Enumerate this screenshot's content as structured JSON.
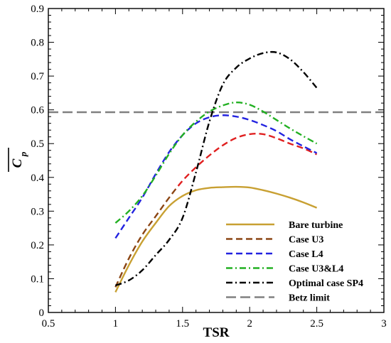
{
  "chart_data": {
    "type": "line",
    "xlabel": "TSR",
    "ylabel": "C",
    "ylabel_subscript": "p",
    "xlim": [
      0.5,
      3
    ],
    "ylim": [
      0,
      0.9
    ],
    "xticks": [
      0.5,
      1,
      1.5,
      2,
      2.5,
      3
    ],
    "xtick_labels": [
      "0.5",
      "1",
      "1.5",
      "2",
      "2.5",
      "3"
    ],
    "yticks": [
      0,
      0.1,
      0.2,
      0.3,
      0.4,
      0.5,
      0.6,
      0.7,
      0.8,
      0.9
    ],
    "ytick_labels": [
      "0",
      "0.1",
      "0.2",
      "0.3",
      "0.4",
      "0.5",
      "0.6",
      "0.7",
      "0.8",
      "0.9"
    ],
    "grid": false,
    "legend_position": "bottom-right",
    "series": [
      {
        "name": "Bare turbine",
        "color": "#c8a032",
        "dash": "solid",
        "x": [
          1.0,
          1.1,
          1.2,
          1.3,
          1.4,
          1.5,
          1.6,
          1.7,
          1.8,
          1.9,
          2.0,
          2.1,
          2.2,
          2.3,
          2.4,
          2.5
        ],
        "y": [
          0.06,
          0.14,
          0.21,
          0.265,
          0.315,
          0.345,
          0.362,
          0.369,
          0.371,
          0.372,
          0.37,
          0.362,
          0.352,
          0.34,
          0.326,
          0.31
        ]
      },
      {
        "name": "Case U3",
        "color": "#8b4513",
        "dash": "dash",
        "x": [
          1.0,
          1.1,
          1.2,
          1.3,
          1.4,
          1.5,
          1.6,
          1.7,
          1.8,
          1.9,
          2.0,
          2.1,
          2.2,
          2.3,
          2.4,
          2.5
        ],
        "y": [
          0.075,
          0.16,
          0.23,
          0.285,
          0.34,
          0.39,
          0.43,
          0.465,
          0.495,
          0.517,
          0.528,
          0.528,
          0.516,
          0.5,
          0.486,
          0.468
        ],
        "color_segments": [
          {
            "from": 0,
            "to": 0.3,
            "color": "#8b4513"
          },
          {
            "from": 0.3,
            "to": 1,
            "color": "#e02020"
          }
        ]
      },
      {
        "name": "Case L4",
        "color": "#2323e0",
        "dash": "dash",
        "x": [
          1.0,
          1.1,
          1.2,
          1.3,
          1.4,
          1.5,
          1.6,
          1.7,
          1.8,
          1.9,
          2.0,
          2.1,
          2.2,
          2.3,
          2.4,
          2.5
        ],
        "y": [
          0.22,
          0.28,
          0.34,
          0.41,
          0.475,
          0.525,
          0.56,
          0.578,
          0.584,
          0.58,
          0.57,
          0.555,
          0.537,
          0.513,
          0.492,
          0.472
        ]
      },
      {
        "name": "Case U3&L4",
        "color": "#22b022",
        "dash": "dashdot",
        "x": [
          1.0,
          1.1,
          1.2,
          1.3,
          1.4,
          1.5,
          1.6,
          1.7,
          1.8,
          1.9,
          2.0,
          2.1,
          2.2,
          2.3,
          2.4,
          2.5
        ],
        "y": [
          0.265,
          0.3,
          0.345,
          0.405,
          0.47,
          0.525,
          0.565,
          0.595,
          0.613,
          0.622,
          0.615,
          0.595,
          0.57,
          0.545,
          0.522,
          0.5
        ]
      },
      {
        "name": "Optimal case SP4",
        "color": "#000000",
        "dash": "dashdot",
        "x": [
          1.0,
          1.1,
          1.2,
          1.3,
          1.4,
          1.5,
          1.6,
          1.7,
          1.8,
          1.9,
          2.0,
          2.1,
          2.2,
          2.3,
          2.4,
          2.5
        ],
        "y": [
          0.08,
          0.095,
          0.125,
          0.17,
          0.215,
          0.28,
          0.415,
          0.565,
          0.675,
          0.725,
          0.752,
          0.768,
          0.77,
          0.75,
          0.712,
          0.665
        ]
      },
      {
        "name": "Betz limit",
        "color": "#808080",
        "dash": "longdash",
        "x": [
          0.5,
          3.0
        ],
        "y": [
          0.593,
          0.593
        ]
      }
    ]
  }
}
